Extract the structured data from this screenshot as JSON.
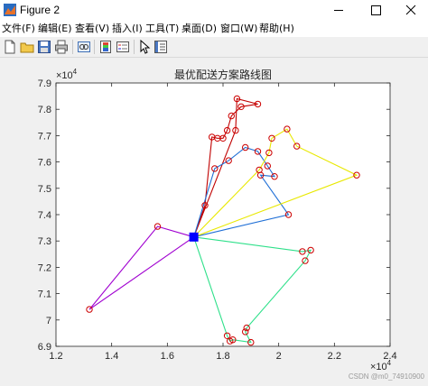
{
  "window": {
    "title": "Figure 2",
    "icon": "matlab-figure-icon"
  },
  "menu": [
    "文件(F)",
    "编辑(E)",
    "查看(V)",
    "插入(I)",
    "工具(T)",
    "桌面(D)",
    "窗口(W)",
    "帮助(H)"
  ],
  "toolbar": [
    "new-file-icon",
    "open-folder-icon",
    "save-icon",
    "print-icon",
    "link-figure-icon",
    "insert-colorbar-icon",
    "insert-legend-icon",
    "edit-plot-pointer-icon",
    "property-inspector-icon"
  ],
  "watermark": "CSDN @m0_74910900",
  "chart_data": {
    "type": "line",
    "title": "最优配送方案路线图",
    "xlabel": "",
    "ylabel": "",
    "x_exponent_label": "×10",
    "x_exponent_power": "4",
    "y_exponent_label": "×10",
    "y_exponent_power": "4",
    "xlim": [
      1.2,
      2.4
    ],
    "ylim": [
      6.9,
      7.9
    ],
    "xticks": [
      "1.2",
      "1.4",
      "1.6",
      "1.8",
      "2",
      "2.2",
      "2.4"
    ],
    "yticks": [
      "6.9",
      "7",
      "7.1",
      "7.2",
      "7.3",
      "7.4",
      "7.5",
      "7.6",
      "7.7",
      "7.8",
      "7.9"
    ],
    "depot": {
      "x": 1.695,
      "y": 7.315,
      "color": "#0000ff"
    },
    "marker_color": "#cc0000",
    "routes": [
      {
        "color": "#c00000",
        "points": [
          [
            1.695,
            7.315
          ],
          [
            1.735,
            7.435
          ],
          [
            1.76,
            7.695
          ],
          [
            1.78,
            7.69
          ],
          [
            1.8,
            7.69
          ],
          [
            1.815,
            7.72
          ],
          [
            1.83,
            7.775
          ],
          [
            1.865,
            7.81
          ],
          [
            1.925,
            7.82
          ],
          [
            1.85,
            7.84
          ],
          [
            1.845,
            7.72
          ],
          [
            1.695,
            7.315
          ]
        ]
      },
      {
        "color": "#1f6fd6",
        "points": [
          [
            1.695,
            7.315
          ],
          [
            1.77,
            7.575
          ],
          [
            1.82,
            7.605
          ],
          [
            1.88,
            7.655
          ],
          [
            1.925,
            7.64
          ],
          [
            1.96,
            7.585
          ],
          [
            1.985,
            7.545
          ],
          [
            1.935,
            7.55
          ],
          [
            2.035,
            7.4
          ],
          [
            1.695,
            7.315
          ]
        ]
      },
      {
        "color": "#e8e800",
        "points": [
          [
            1.695,
            7.315
          ],
          [
            1.93,
            7.57
          ],
          [
            1.965,
            7.635
          ],
          [
            1.975,
            7.69
          ],
          [
            2.03,
            7.725
          ],
          [
            2.065,
            7.66
          ],
          [
            2.28,
            7.55
          ],
          [
            1.695,
            7.315
          ]
        ]
      },
      {
        "color": "#a000d0",
        "points": [
          [
            1.695,
            7.315
          ],
          [
            1.565,
            7.355
          ],
          [
            1.32,
            7.04
          ],
          [
            1.695,
            7.315
          ]
        ]
      },
      {
        "color": "#2ee08a",
        "points": [
          [
            1.695,
            7.315
          ],
          [
            1.815,
            6.94
          ],
          [
            1.825,
            6.92
          ],
          [
            1.835,
            6.925
          ],
          [
            1.9,
            6.915
          ],
          [
            1.88,
            6.955
          ],
          [
            1.885,
            6.97
          ],
          [
            2.095,
            7.225
          ],
          [
            2.115,
            7.265
          ],
          [
            2.085,
            7.26
          ],
          [
            1.695,
            7.315
          ]
        ]
      }
    ]
  }
}
